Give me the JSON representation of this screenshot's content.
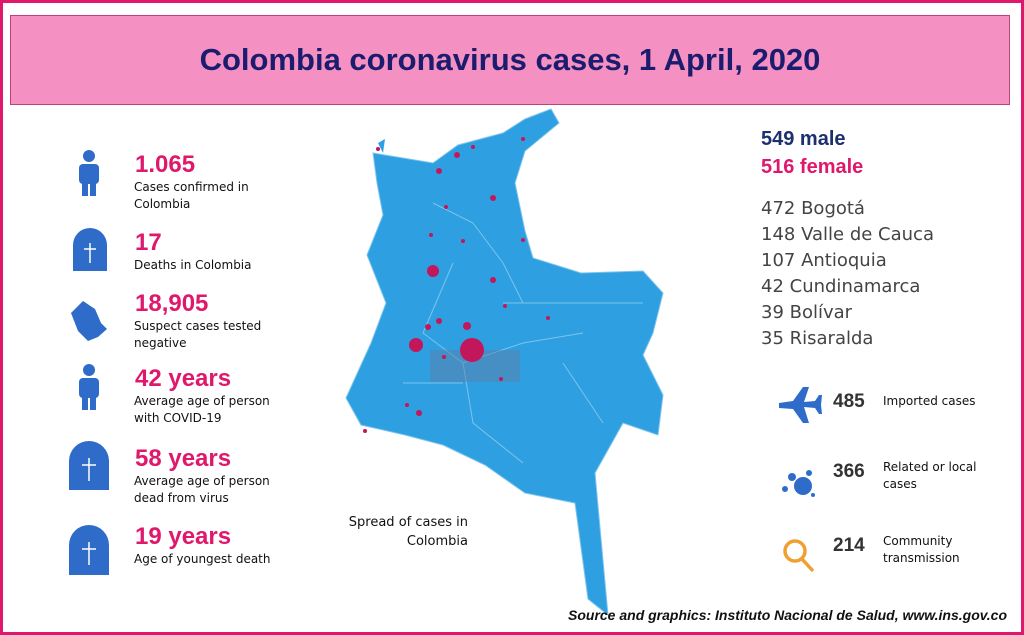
{
  "header": {
    "title": "Colombia coronavirus cases, 1 April, 2020"
  },
  "stats": [
    {
      "value": "1.065",
      "label": "Cases confirmed in Colombia"
    },
    {
      "value": "17",
      "label": "Deaths in Colombia"
    },
    {
      "value": "18,905",
      "label": "Suspect cases tested negative"
    },
    {
      "value": "42 years",
      "label": "Average age of person with COVID-19"
    },
    {
      "value": "58 years",
      "label": "Average age of person dead from virus"
    },
    {
      "value": "19 years",
      "label": "Age of youngest death"
    }
  ],
  "gender": [
    "549  male",
    "516  female"
  ],
  "regions": [
    "472  Bogotá",
    "148  Valle de Cauca",
    "107 Antioquia",
    "42 Cundinamarca",
    "39  Bolívar",
    "35 Risaralda"
  ],
  "case_types": [
    {
      "number": "485",
      "label": "Imported cases"
    },
    {
      "number": "366",
      "label": "Related or local cases"
    },
    {
      "number": "214",
      "label": "Community transmission"
    }
  ],
  "map_caption": "Spread of cases in Colombia",
  "source": "Source and graphics: Instituto Nacional de Salud, www.ins.gov.co"
}
